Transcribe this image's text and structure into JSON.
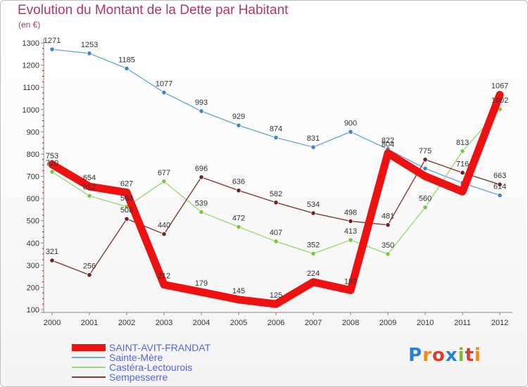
{
  "title": "Evolution du Montant de la Dette par Habitant",
  "subtitle": "(en €)",
  "logo": {
    "text": "Proxiti",
    "colors": [
      "#2a7fd4",
      "#f08a1c",
      "#e03a2e",
      "#2a7fd4",
      "#7cbb2f",
      "#e03a2e",
      "#f08a1c"
    ]
  },
  "chart_data": {
    "type": "line",
    "x": [
      "2000",
      "2001",
      "2002",
      "2003",
      "2004",
      "2005",
      "2006",
      "2007",
      "2008",
      "2009",
      "2010",
      "2011",
      "2012"
    ],
    "ylim": [
      100,
      1300
    ],
    "yticks": [
      100,
      200,
      300,
      400,
      500,
      600,
      700,
      800,
      900,
      1000,
      1100,
      1200,
      1300
    ],
    "grid": false,
    "legend_position": "bottom-left",
    "series": [
      {
        "name": "SAINT-AVIT-FRANDAT",
        "color": "#ee1111",
        "marker": "#ee1111",
        "values": [
          753,
          654,
          627,
          212,
          179,
          145,
          125,
          224,
          187,
          804,
          700,
          631,
          1067
        ],
        "labels": [
          "753",
          "654",
          "627",
          "212",
          "179",
          "145",
          "125",
          "224",
          "187",
          "804",
          "",
          "",
          "1067"
        ]
      },
      {
        "name": "Sainte-Mère",
        "color": "#6fa8dc",
        "marker": "#3d85c6",
        "values": [
          1271,
          1253,
          1185,
          1077,
          993,
          929,
          874,
          831,
          900,
          822,
          735,
          670,
          614
        ],
        "labels": [
          "1271",
          "1253",
          "1185",
          "1077",
          "993",
          "929",
          "874",
          "831",
          "900",
          "822",
          "",
          "",
          "614"
        ]
      },
      {
        "name": "Castéra-Lectourois",
        "color": "#9fd77a",
        "marker": "#7cc243",
        "values": [
          720,
          612,
          563,
          677,
          539,
          472,
          407,
          352,
          413,
          350,
          560,
          813,
          1002
        ],
        "labels": [
          "720",
          "612",
          "563",
          "677",
          "539",
          "472",
          "407",
          "352",
          "413",
          "350",
          "560",
          "813",
          "1002"
        ]
      },
      {
        "name": "Sempesserre",
        "color": "#7d3a3a",
        "marker": "#6a2424",
        "values": [
          321,
          256,
          508,
          440,
          696,
          636,
          582,
          534,
          498,
          481,
          775,
          716,
          663
        ],
        "labels": [
          "321",
          "256",
          "508",
          "440",
          "696",
          "636",
          "582",
          "534",
          "498",
          "481",
          "775",
          "716",
          "663"
        ]
      }
    ]
  }
}
